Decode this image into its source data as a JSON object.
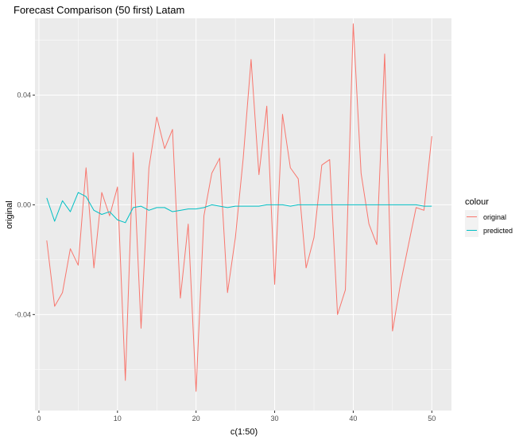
{
  "chart_data": {
    "type": "line",
    "title": "Forecast Comparison (50 first) Latam",
    "xlabel": "c(1:50)",
    "ylabel": "original",
    "xlim": [
      -0.5,
      52.5
    ],
    "ylim": [
      -0.075,
      0.068
    ],
    "x_ticks": [
      0,
      10,
      20,
      30,
      40,
      50
    ],
    "x_tick_labels": [
      "0",
      "10",
      "20",
      "30",
      "40",
      "50"
    ],
    "y_ticks": [
      -0.04,
      0.0,
      0.04
    ],
    "y_tick_labels": [
      "-0.04",
      "0.00",
      "0.04"
    ],
    "grid": true,
    "legend": {
      "title": "colour",
      "position": "right"
    },
    "x": [
      1,
      2,
      3,
      4,
      5,
      6,
      7,
      8,
      9,
      10,
      11,
      12,
      13,
      14,
      15,
      16,
      17,
      18,
      19,
      20,
      21,
      22,
      23,
      24,
      25,
      26,
      27,
      28,
      29,
      30,
      31,
      32,
      33,
      34,
      35,
      36,
      37,
      38,
      39,
      40,
      41,
      42,
      43,
      44,
      45,
      46,
      47,
      48,
      49,
      50
    ],
    "series": [
      {
        "name": "original",
        "color": "#F8766D",
        "values": [
          -0.013,
          -0.037,
          -0.032,
          -0.016,
          -0.022,
          0.0135,
          -0.023,
          0.0045,
          -0.004,
          0.0065,
          -0.064,
          0.019,
          -0.045,
          0.0135,
          0.032,
          0.0205,
          0.0275,
          -0.034,
          -0.007,
          -0.068,
          -0.004,
          0.0115,
          0.017,
          -0.032,
          -0.012,
          0.017,
          0.053,
          0.011,
          0.036,
          -0.029,
          0.033,
          0.0135,
          0.0095,
          -0.023,
          -0.012,
          0.0145,
          0.0165,
          -0.04,
          -0.031,
          0.066,
          0.0115,
          -0.007,
          -0.0145,
          0.055,
          -0.046,
          -0.029,
          -0.015,
          -0.001,
          -0.002,
          0.025
        ]
      },
      {
        "name": "predicted",
        "color": "#00BFC4",
        "values": [
          0.0025,
          -0.006,
          0.0015,
          -0.0025,
          0.0045,
          0.003,
          -0.002,
          -0.0035,
          -0.0025,
          -0.0055,
          -0.0065,
          -0.001,
          -0.0005,
          -0.002,
          -0.001,
          -0.001,
          -0.0025,
          -0.002,
          -0.0015,
          -0.0015,
          -0.001,
          0.0,
          -0.0005,
          -0.001,
          -0.0005,
          -0.0005,
          -0.0005,
          -0.0005,
          0.0,
          0.0,
          0.0,
          -0.0005,
          0.0,
          0.0,
          0.0,
          0.0,
          0.0,
          0.0,
          0.0,
          0.0,
          0.0,
          0.0,
          0.0,
          0.0,
          0.0,
          0.0,
          0.0,
          0.0,
          -0.0005,
          -0.0005
        ]
      }
    ]
  }
}
